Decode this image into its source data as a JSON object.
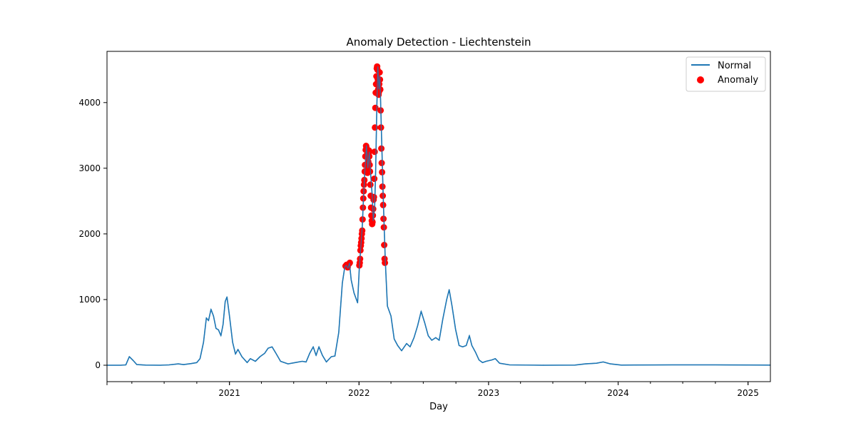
{
  "chart_data": {
    "type": "line",
    "title": "Anomaly Detection - Liechtenstein",
    "xlabel": "Day",
    "ylabel": "",
    "xlim": [
      "2020-01-22",
      "2025-03-05"
    ],
    "ylim": [
      -250,
      4780
    ],
    "x_tick_labels": [
      "2021",
      "2022",
      "2023",
      "2024",
      "2025"
    ],
    "y_ticks": [
      0,
      1000,
      2000,
      3000,
      4000
    ],
    "grid": false,
    "legend": {
      "placement": "top-right",
      "entries": [
        "Normal",
        "Anomaly"
      ]
    },
    "colors": {
      "normal": "#1f77b4",
      "anomaly": "#ff0000"
    },
    "series": [
      {
        "name": "Normal",
        "type": "line",
        "points": [
          [
            "2020-01-22",
            0
          ],
          [
            "2020-03-01",
            0
          ],
          [
            "2020-03-15",
            5
          ],
          [
            "2020-03-25",
            130
          ],
          [
            "2020-04-05",
            70
          ],
          [
            "2020-04-15",
            10
          ],
          [
            "2020-05-10",
            2
          ],
          [
            "2020-06-20",
            0
          ],
          [
            "2020-07-15",
            5
          ],
          [
            "2020-08-10",
            20
          ],
          [
            "2020-08-25",
            10
          ],
          [
            "2020-09-15",
            25
          ],
          [
            "2020-10-01",
            40
          ],
          [
            "2020-10-10",
            100
          ],
          [
            "2020-10-20",
            350
          ],
          [
            "2020-10-28",
            720
          ],
          [
            "2020-11-03",
            680
          ],
          [
            "2020-11-10",
            850
          ],
          [
            "2020-11-17",
            750
          ],
          [
            "2020-11-24",
            560
          ],
          [
            "2020-12-01",
            540
          ],
          [
            "2020-12-08",
            450
          ],
          [
            "2020-12-14",
            620
          ],
          [
            "2020-12-20",
            970
          ],
          [
            "2020-12-25",
            1040
          ],
          [
            "2021-01-01",
            750
          ],
          [
            "2021-01-10",
            350
          ],
          [
            "2021-01-18",
            170
          ],
          [
            "2021-01-25",
            240
          ],
          [
            "2021-02-05",
            130
          ],
          [
            "2021-02-20",
            40
          ],
          [
            "2021-03-01",
            100
          ],
          [
            "2021-03-15",
            60
          ],
          [
            "2021-03-28",
            130
          ],
          [
            "2021-04-10",
            180
          ],
          [
            "2021-04-20",
            260
          ],
          [
            "2021-05-01",
            280
          ],
          [
            "2021-05-12",
            180
          ],
          [
            "2021-05-25",
            60
          ],
          [
            "2021-06-15",
            20
          ],
          [
            "2021-07-05",
            40
          ],
          [
            "2021-07-25",
            60
          ],
          [
            "2021-08-05",
            50
          ],
          [
            "2021-08-15",
            180
          ],
          [
            "2021-08-25",
            280
          ],
          [
            "2021-09-02",
            150
          ],
          [
            "2021-09-10",
            280
          ],
          [
            "2021-09-20",
            150
          ],
          [
            "2021-10-01",
            50
          ],
          [
            "2021-10-15",
            130
          ],
          [
            "2021-10-25",
            140
          ],
          [
            "2021-11-05",
            500
          ],
          [
            "2021-11-15",
            1250
          ],
          [
            "2021-11-22",
            1500
          ],
          [
            "2021-11-26",
            1520
          ],
          [
            "2021-12-01",
            1480
          ],
          [
            "2021-12-05",
            1560
          ],
          [
            "2021-12-10",
            1300
          ],
          [
            "2021-12-18",
            1100
          ],
          [
            "2021-12-28",
            950
          ],
          [
            "2022-01-02",
            1500
          ],
          [
            "2022-01-06",
            1800
          ],
          [
            "2022-01-10",
            2100
          ],
          [
            "2022-01-14",
            2600
          ],
          [
            "2022-01-18",
            3000
          ],
          [
            "2022-01-22",
            3350
          ],
          [
            "2022-01-26",
            3000
          ],
          [
            "2022-01-30",
            3250
          ],
          [
            "2022-02-03",
            2900
          ],
          [
            "2022-02-07",
            2600
          ],
          [
            "2022-02-10",
            2200
          ],
          [
            "2022-02-14",
            2400
          ],
          [
            "2022-02-17",
            3000
          ],
          [
            "2022-02-20",
            3900
          ],
          [
            "2022-02-23",
            4550
          ],
          [
            "2022-02-26",
            4200
          ],
          [
            "2022-03-01",
            4400
          ],
          [
            "2022-03-04",
            3800
          ],
          [
            "2022-03-07",
            3200
          ],
          [
            "2022-03-10",
            2600
          ],
          [
            "2022-03-13",
            2100
          ],
          [
            "2022-03-16",
            1600
          ],
          [
            "2022-03-22",
            900
          ],
          [
            "2022-04-01",
            750
          ],
          [
            "2022-04-10",
            400
          ],
          [
            "2022-04-20",
            300
          ],
          [
            "2022-05-01",
            220
          ],
          [
            "2022-05-15",
            330
          ],
          [
            "2022-05-25",
            280
          ],
          [
            "2022-06-05",
            420
          ],
          [
            "2022-06-15",
            600
          ],
          [
            "2022-06-25",
            820
          ],
          [
            "2022-07-05",
            650
          ],
          [
            "2022-07-15",
            450
          ],
          [
            "2022-07-25",
            380
          ],
          [
            "2022-08-05",
            420
          ],
          [
            "2022-08-15",
            380
          ],
          [
            "2022-08-25",
            700
          ],
          [
            "2022-09-05",
            1000
          ],
          [
            "2022-09-12",
            1150
          ],
          [
            "2022-09-20",
            900
          ],
          [
            "2022-09-30",
            550
          ],
          [
            "2022-10-10",
            300
          ],
          [
            "2022-10-20",
            280
          ],
          [
            "2022-10-30",
            300
          ],
          [
            "2022-11-08",
            450
          ],
          [
            "2022-11-15",
            300
          ],
          [
            "2022-11-25",
            200
          ],
          [
            "2022-12-05",
            80
          ],
          [
            "2022-12-15",
            40
          ],
          [
            "2022-12-25",
            60
          ],
          [
            "2023-01-10",
            80
          ],
          [
            "2023-01-20",
            100
          ],
          [
            "2023-02-01",
            30
          ],
          [
            "2023-03-01",
            5
          ],
          [
            "2023-06-01",
            0
          ],
          [
            "2023-09-01",
            2
          ],
          [
            "2023-10-01",
            20
          ],
          [
            "2023-11-01",
            30
          ],
          [
            "2023-11-20",
            50
          ],
          [
            "2023-12-10",
            20
          ],
          [
            "2024-01-10",
            2
          ],
          [
            "2024-06-01",
            5
          ],
          [
            "2024-10-01",
            5
          ],
          [
            "2025-01-01",
            3
          ],
          [
            "2025-03-05",
            2
          ]
        ]
      },
      {
        "name": "Anomaly",
        "type": "scatter",
        "points": [
          [
            "2021-11-24",
            1510
          ],
          [
            "2021-11-27",
            1530
          ],
          [
            "2021-11-30",
            1490
          ],
          [
            "2021-12-03",
            1540
          ],
          [
            "2021-12-06",
            1560
          ],
          [
            "2022-01-02",
            1520
          ],
          [
            "2022-01-03",
            1560
          ],
          [
            "2022-01-04",
            1620
          ],
          [
            "2022-01-05",
            1750
          ],
          [
            "2022-01-06",
            1820
          ],
          [
            "2022-01-07",
            1870
          ],
          [
            "2022-01-08",
            1930
          ],
          [
            "2022-01-09",
            2000
          ],
          [
            "2022-01-10",
            2050
          ],
          [
            "2022-01-11",
            2220
          ],
          [
            "2022-01-12",
            2400
          ],
          [
            "2022-01-13",
            2540
          ],
          [
            "2022-01-14",
            2650
          ],
          [
            "2022-01-15",
            2750
          ],
          [
            "2022-01-16",
            2820
          ],
          [
            "2022-01-17",
            2950
          ],
          [
            "2022-01-18",
            3050
          ],
          [
            "2022-01-19",
            3180
          ],
          [
            "2022-01-20",
            3280
          ],
          [
            "2022-01-21",
            3340
          ],
          [
            "2022-01-22",
            3320
          ],
          [
            "2022-01-23",
            3200
          ],
          [
            "2022-01-24",
            3050
          ],
          [
            "2022-01-25",
            2930
          ],
          [
            "2022-01-26",
            3000
          ],
          [
            "2022-01-27",
            3100
          ],
          [
            "2022-01-28",
            3230
          ],
          [
            "2022-01-29",
            3270
          ],
          [
            "2022-01-30",
            3180
          ],
          [
            "2022-01-31",
            3050
          ],
          [
            "2022-02-01",
            2950
          ],
          [
            "2022-02-02",
            2750
          ],
          [
            "2022-02-03",
            2580
          ],
          [
            "2022-02-04",
            2400
          ],
          [
            "2022-02-05",
            2280
          ],
          [
            "2022-02-06",
            2200
          ],
          [
            "2022-02-07",
            2150
          ],
          [
            "2022-02-08",
            2180
          ],
          [
            "2022-02-09",
            2280
          ],
          [
            "2022-02-10",
            2380
          ],
          [
            "2022-02-11",
            2520
          ],
          [
            "2022-02-12",
            2560
          ],
          [
            "2022-02-13",
            2840
          ],
          [
            "2022-02-14",
            3250
          ],
          [
            "2022-02-15",
            3620
          ],
          [
            "2022-02-16",
            3920
          ],
          [
            "2022-02-17",
            4150
          ],
          [
            "2022-02-18",
            4280
          ],
          [
            "2022-02-19",
            4400
          ],
          [
            "2022-02-20",
            4520
          ],
          [
            "2022-02-21",
            4550
          ],
          [
            "2022-02-22",
            4500
          ],
          [
            "2022-02-23",
            4350
          ],
          [
            "2022-02-24",
            4200
          ],
          [
            "2022-02-25",
            4120
          ],
          [
            "2022-02-26",
            4160
          ],
          [
            "2022-02-27",
            4280
          ],
          [
            "2022-02-28",
            4460
          ],
          [
            "2022-03-01",
            4350
          ],
          [
            "2022-03-02",
            4200
          ],
          [
            "2022-03-03",
            3880
          ],
          [
            "2022-03-04",
            3620
          ],
          [
            "2022-03-05",
            3300
          ],
          [
            "2022-03-06",
            3080
          ],
          [
            "2022-03-07",
            2940
          ],
          [
            "2022-03-08",
            2720
          ],
          [
            "2022-03-09",
            2580
          ],
          [
            "2022-03-10",
            2440
          ],
          [
            "2022-03-11",
            2230
          ],
          [
            "2022-03-12",
            2100
          ],
          [
            "2022-03-13",
            1830
          ],
          [
            "2022-03-14",
            1620
          ],
          [
            "2022-03-15",
            1560
          ]
        ]
      }
    ]
  }
}
